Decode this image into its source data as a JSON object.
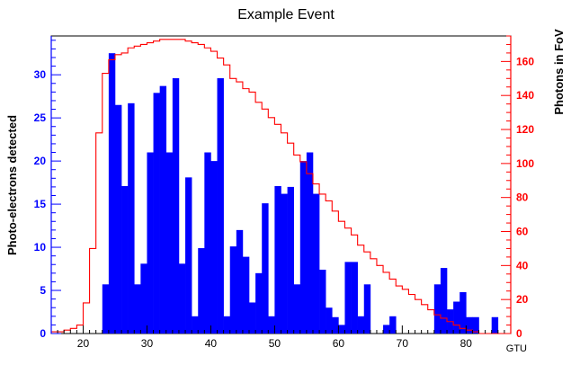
{
  "chart_data": {
    "type": "bar",
    "title": "Example Event",
    "xlabel": "GTU",
    "ylabel": "Photo-electrons detected",
    "y2label": "Photons in FoV",
    "xlim": [
      15,
      87
    ],
    "ylim": [
      0,
      34.5
    ],
    "y2lim": [
      0,
      175
    ],
    "x_ticks": [
      20,
      30,
      40,
      50,
      60,
      70,
      80
    ],
    "y_ticks": [
      0,
      5,
      10,
      15,
      20,
      25,
      30
    ],
    "y2_ticks": [
      0,
      20,
      40,
      60,
      80,
      100,
      120,
      140,
      160
    ],
    "grid": false,
    "colors": {
      "bars": "#0000ff",
      "line": "#ff0000",
      "left_axis": "#0000ff",
      "right_axis": "#ff0000"
    },
    "series": [
      {
        "type": "bar",
        "axis": "left",
        "bin_start": 15,
        "bin_width": 1,
        "values": [
          0,
          0,
          0,
          0,
          0,
          0,
          0,
          0,
          5.7,
          32.5,
          26.5,
          17.1,
          26.7,
          5.7,
          8.1,
          21,
          27.9,
          28.7,
          21,
          29.6,
          8.1,
          18.1,
          2,
          9.9,
          21,
          20,
          29.6,
          2,
          10.1,
          12,
          8.9,
          3.6,
          7,
          15.1,
          2,
          17.1,
          16.2,
          17,
          5.7,
          20,
          21,
          16.2,
          7.4,
          3,
          1.9,
          1,
          8.3,
          8.3,
          2,
          5.7,
          0,
          0,
          1,
          2,
          0,
          0,
          0,
          0,
          0,
          0,
          5.7,
          7.6,
          2.8,
          3.7,
          4.8,
          1.9,
          1.9,
          0,
          0,
          1.9,
          0,
          0
        ]
      },
      {
        "type": "step",
        "axis": "right",
        "bin_start": 15,
        "bin_width": 1,
        "values": [
          1,
          1,
          2,
          3,
          5,
          18,
          50,
          118,
          153,
          161,
          164,
          165,
          168,
          169,
          170,
          171,
          172,
          173,
          173,
          173,
          173,
          172,
          171,
          170,
          168,
          166,
          162,
          158,
          150,
          148,
          144,
          142,
          136,
          132,
          127,
          123,
          118,
          112,
          105,
          101,
          94,
          88,
          82,
          78,
          72,
          66,
          62,
          58,
          52,
          48,
          44,
          40,
          36,
          32,
          28,
          26,
          23,
          20,
          17,
          14,
          11,
          9,
          7,
          5,
          3,
          2,
          1,
          0,
          0,
          0,
          0,
          0
        ]
      }
    ]
  }
}
